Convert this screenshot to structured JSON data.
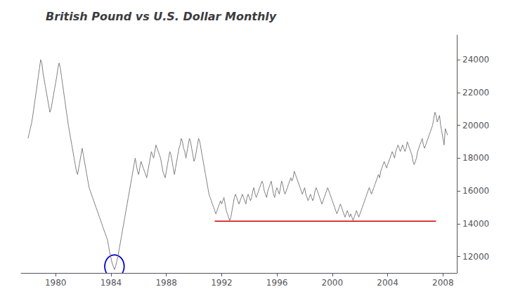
{
  "chart_data": {
    "type": "line",
    "title": "British Pound vs U.S. Dollar Monthly",
    "xlim": [
      1977.5,
      2009.0
    ],
    "xticks": [
      1980,
      1984,
      1988,
      1992,
      1996,
      2000,
      2004,
      2008
    ],
    "ylim": [
      11000,
      25500
    ],
    "yticks": [
      12000,
      14000,
      16000,
      18000,
      20000,
      22000,
      24000
    ],
    "grid": false,
    "series": [
      {
        "type": "line",
        "color": "#808080",
        "x": [
          1978.0,
          1978.083,
          1978.167,
          1978.25,
          1978.333,
          1978.417,
          1978.5,
          1978.583,
          1978.667,
          1978.75,
          1978.833,
          1978.917,
          1979.0,
          1979.083,
          1979.167,
          1979.25,
          1979.333,
          1979.417,
          1979.5,
          1979.583,
          1979.667,
          1979.75,
          1979.833,
          1979.917,
          1980.0,
          1980.083,
          1980.167,
          1980.25,
          1980.333,
          1980.417,
          1980.5,
          1980.583,
          1980.667,
          1980.75,
          1980.833,
          1980.917,
          1981.0,
          1981.083,
          1981.167,
          1981.25,
          1981.333,
          1981.417,
          1981.5,
          1981.583,
          1981.667,
          1981.75,
          1981.833,
          1981.917,
          1982.0,
          1982.083,
          1982.167,
          1982.25,
          1982.333,
          1982.417,
          1982.5,
          1982.583,
          1982.667,
          1982.75,
          1982.833,
          1982.917,
          1983.0,
          1983.083,
          1983.167,
          1983.25,
          1983.333,
          1983.417,
          1983.5,
          1983.583,
          1983.667,
          1983.75,
          1983.833,
          1983.917,
          1984.0,
          1984.083,
          1984.167,
          1984.25,
          1984.333,
          1984.417,
          1984.5,
          1984.583,
          1984.667,
          1984.75,
          1984.833,
          1984.917,
          1985.0,
          1985.083,
          1985.167,
          1985.25,
          1985.333,
          1985.417,
          1985.5,
          1985.583,
          1985.667,
          1985.75,
          1985.833,
          1985.917,
          1986.0,
          1986.083,
          1986.167,
          1986.25,
          1986.333,
          1986.417,
          1986.5,
          1986.583,
          1986.667,
          1986.75,
          1986.833,
          1986.917,
          1987.0,
          1987.083,
          1987.167,
          1987.25,
          1987.333,
          1987.417,
          1987.5,
          1987.583,
          1987.667,
          1987.75,
          1987.833,
          1987.917,
          1988.0,
          1988.083,
          1988.167,
          1988.25,
          1988.333,
          1988.417,
          1988.5,
          1988.583,
          1988.667,
          1988.75,
          1988.833,
          1988.917,
          1989.0,
          1989.083,
          1989.167,
          1989.25,
          1989.333,
          1989.417,
          1989.5,
          1989.583,
          1989.667,
          1989.75,
          1989.833,
          1989.917,
          1990.0,
          1990.083,
          1990.167,
          1990.25,
          1990.333,
          1990.417,
          1990.5,
          1990.583,
          1990.667,
          1990.75,
          1990.833,
          1990.917,
          1991.0,
          1991.083,
          1991.167,
          1991.25,
          1991.333,
          1991.417,
          1991.5,
          1991.583,
          1991.667,
          1991.75,
          1991.833,
          1991.917,
          1992.0,
          1992.083,
          1992.167,
          1992.25,
          1992.333,
          1992.417,
          1992.5,
          1992.583,
          1992.667,
          1992.75,
          1992.833,
          1992.917,
          1993.0,
          1993.083,
          1993.167,
          1993.25,
          1993.333,
          1993.417,
          1993.5,
          1993.583,
          1993.667,
          1993.75,
          1993.833,
          1993.917,
          1994.0,
          1994.083,
          1994.167,
          1994.25,
          1994.333,
          1994.417,
          1994.5,
          1994.583,
          1994.667,
          1994.75,
          1994.833,
          1994.917,
          1995.0,
          1995.083,
          1995.167,
          1995.25,
          1995.333,
          1995.417,
          1995.5,
          1995.583,
          1995.667,
          1995.75,
          1995.833,
          1995.917,
          1996.0,
          1996.083,
          1996.167,
          1996.25,
          1996.333,
          1996.417,
          1996.5,
          1996.583,
          1996.667,
          1996.75,
          1996.833,
          1996.917,
          1997.0,
          1997.083,
          1997.167,
          1997.25,
          1997.333,
          1997.417,
          1997.5,
          1997.583,
          1997.667,
          1997.75,
          1997.833,
          1997.917,
          1998.0,
          1998.083,
          1998.167,
          1998.25,
          1998.333,
          1998.417,
          1998.5,
          1998.583,
          1998.667,
          1998.75,
          1998.833,
          1998.917,
          1999.0,
          1999.083,
          1999.167,
          1999.25,
          1999.333,
          1999.417,
          1999.5,
          1999.583,
          1999.667,
          1999.75,
          1999.833,
          1999.917,
          2000.0,
          2000.083,
          2000.167,
          2000.25,
          2000.333,
          2000.417,
          2000.5,
          2000.583,
          2000.667,
          2000.75,
          2000.833,
          2000.917,
          2001.0,
          2001.083,
          2001.167,
          2001.25,
          2001.333,
          2001.417,
          2001.5,
          2001.583,
          2001.667,
          2001.75,
          2001.833,
          2001.917,
          2002.0,
          2002.083,
          2002.167,
          2002.25,
          2002.333,
          2002.417,
          2002.5,
          2002.583,
          2002.667,
          2002.75,
          2002.833,
          2002.917,
          2003.0,
          2003.083,
          2003.167,
          2003.25,
          2003.333,
          2003.417,
          2003.5,
          2003.583,
          2003.667,
          2003.75,
          2003.833,
          2003.917,
          2004.0,
          2004.083,
          2004.167,
          2004.25,
          2004.333,
          2004.417,
          2004.5,
          2004.583,
          2004.667,
          2004.75,
          2004.833,
          2004.917,
          2005.0,
          2005.083,
          2005.167,
          2005.25,
          2005.333,
          2005.417,
          2005.5,
          2005.583,
          2005.667,
          2005.75,
          2005.833,
          2005.917,
          2006.0,
          2006.083,
          2006.167,
          2006.25,
          2006.333,
          2006.417,
          2006.5,
          2006.583,
          2006.667,
          2006.75,
          2006.833,
          2006.917,
          2007.0,
          2007.083,
          2007.167,
          2007.25,
          2007.333,
          2007.417,
          2007.5,
          2007.583,
          2007.667,
          2007.75,
          2007.833,
          2007.917,
          2008.0,
          2008.083,
          2008.167,
          2008.25,
          2008.333
        ],
        "values": [
          19200,
          19500,
          19800,
          20100,
          20500,
          21000,
          21500,
          22000,
          22500,
          23000,
          23500,
          24000,
          23800,
          23200,
          22800,
          22400,
          22000,
          21600,
          21200,
          20800,
          21000,
          21400,
          21800,
          22200,
          22600,
          23000,
          23500,
          23800,
          23500,
          23000,
          22500,
          22000,
          21500,
          21000,
          20500,
          20000,
          19600,
          19200,
          18800,
          18400,
          18000,
          17600,
          17200,
          17000,
          17400,
          17800,
          18200,
          18600,
          18200,
          17800,
          17400,
          17000,
          16600,
          16200,
          16000,
          15800,
          15600,
          15400,
          15200,
          15000,
          14800,
          14600,
          14400,
          14200,
          14000,
          13800,
          13600,
          13400,
          13200,
          13000,
          12600,
          12200,
          11900,
          11600,
          11400,
          11200,
          11400,
          11700,
          12000,
          12400,
          12800,
          13200,
          13600,
          14000,
          14400,
          14800,
          15200,
          15600,
          16000,
          16400,
          16800,
          17200,
          17600,
          18000,
          17600,
          17200,
          17000,
          17400,
          17800,
          17600,
          17400,
          17200,
          17000,
          16800,
          17200,
          17600,
          18000,
          18400,
          18200,
          18000,
          18400,
          18800,
          18600,
          18400,
          18200,
          18000,
          17600,
          17200,
          17000,
          16800,
          17200,
          17600,
          18000,
          18400,
          18200,
          17800,
          17400,
          17000,
          17400,
          17800,
          18200,
          18600,
          18800,
          19200,
          19000,
          18600,
          18400,
          18000,
          18400,
          18800,
          19200,
          19000,
          18600,
          18200,
          17800,
          18000,
          18400,
          18800,
          19200,
          19000,
          18600,
          18200,
          17800,
          17400,
          17000,
          16600,
          16200,
          15800,
          15600,
          15400,
          15200,
          15000,
          14800,
          14600,
          14800,
          15000,
          15200,
          15400,
          15200,
          15400,
          15600,
          15200,
          14800,
          14600,
          14400,
          14200,
          14400,
          14800,
          15200,
          15600,
          15800,
          15600,
          15400,
          15200,
          15400,
          15600,
          15800,
          15600,
          15400,
          15200,
          15600,
          15800,
          15600,
          15400,
          15600,
          16000,
          16200,
          15800,
          15600,
          15800,
          16000,
          16200,
          16400,
          16600,
          16400,
          16000,
          15800,
          15600,
          16000,
          16200,
          16400,
          16600,
          16200,
          15800,
          15600,
          16000,
          16200,
          16000,
          15800,
          16200,
          16600,
          16400,
          16000,
          15800,
          16000,
          16200,
          16400,
          16600,
          16800,
          16600,
          16800,
          17200,
          17000,
          16800,
          16600,
          16400,
          16200,
          16000,
          15800,
          16000,
          16200,
          15800,
          15600,
          15400,
          15600,
          15800,
          15600,
          15400,
          15600,
          16000,
          16200,
          16000,
          15800,
          15600,
          15400,
          15200,
          15400,
          15600,
          15800,
          16000,
          16200,
          16000,
          15800,
          15600,
          15400,
          15200,
          15000,
          14800,
          14600,
          14800,
          15000,
          15200,
          15000,
          14800,
          14600,
          14400,
          14600,
          14800,
          14600,
          14400,
          14600,
          14400,
          14200,
          14400,
          14600,
          14800,
          14600,
          14400,
          14600,
          14800,
          15000,
          15200,
          15400,
          15600,
          15800,
          16000,
          16200,
          16000,
          15800,
          16000,
          16200,
          16400,
          16600,
          16800,
          17000,
          16800,
          17200,
          17400,
          17600,
          17800,
          17600,
          17400,
          17600,
          17800,
          18000,
          18200,
          18400,
          18200,
          18000,
          18400,
          18600,
          18800,
          18600,
          18400,
          18600,
          18800,
          18600,
          18400,
          18600,
          19000,
          18800,
          18600,
          18400,
          18200,
          17800,
          17600,
          17800,
          18000,
          18400,
          18600,
          18800,
          19000,
          19200,
          18800,
          18600,
          18800,
          19000,
          19200,
          19400,
          19600,
          19800,
          20000,
          20400,
          20800,
          20600,
          20200,
          20400,
          20600,
          20000,
          19600,
          19200,
          18800,
          19800,
          19600,
          19400
        ]
      },
      {
        "type": "line",
        "color": "#cc0000",
        "x": [
          1991.5,
          2007.5
        ],
        "values": [
          14150,
          14150
        ]
      }
    ],
    "shapes": [
      {
        "type": "ellipse",
        "x": 1984.25,
        "y": 11400,
        "x_radius": 0.7,
        "y_radius": 700,
        "color": "#0000cc"
      }
    ]
  }
}
